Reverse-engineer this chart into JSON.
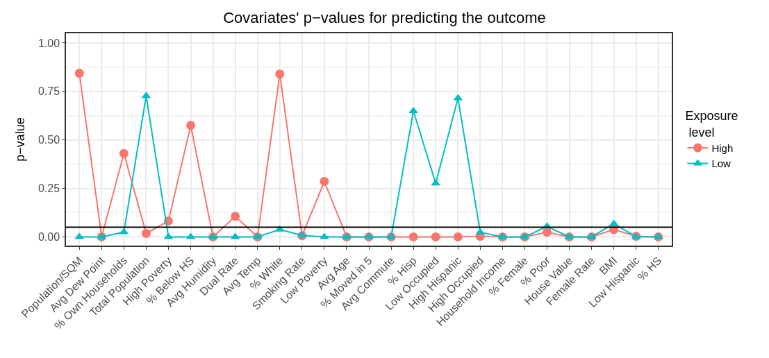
{
  "chart_data": {
    "type": "line",
    "title": "Covariates' p−values for predicting the outcome",
    "ylabel": "p−value",
    "legend_title": "Exposure\n level",
    "categories": [
      "Population/SQM",
      "Avg Dew Point",
      "% Own Households",
      "Total Population",
      "High Poverty",
      "% Below HS",
      "Avg Humidity",
      "Dual Rate",
      "Avg Temp",
      "% White",
      "Smoking Rate",
      "Low Poverty",
      "Avg Age",
      "% Moved in 5",
      "Avg Commute",
      "% Hisp",
      "Low Occupied",
      "High Hispanic",
      "High Occupied",
      "Household Income",
      "% Female",
      "% Poor",
      "House Value",
      "Female Rate",
      "BMI",
      "Low Hispanic",
      "% HS"
    ],
    "series": [
      {
        "name": "High",
        "color": "#f8766d",
        "marker": "circle",
        "values": [
          0.844,
          0,
          0.43,
          0.018,
          0.082,
          0.575,
          0,
          0.106,
          0,
          0.84,
          0.006,
          0.286,
          0,
          0,
          0,
          0,
          0,
          0,
          0.003,
          0,
          0,
          0.024,
          0,
          0,
          0.038,
          0.003,
          0
        ]
      },
      {
        "name": "Low",
        "color": "#00bfc4",
        "marker": "triangle",
        "values": [
          0,
          0,
          0.025,
          0.727,
          0,
          0,
          0,
          0,
          0,
          0.038,
          0.008,
          0,
          0,
          0,
          0,
          0.649,
          0.276,
          0.715,
          0.024,
          0,
          0,
          0.054,
          0,
          0,
          0.068,
          0,
          0
        ]
      }
    ],
    "ylim": [
      -0.045,
      1.05
    ],
    "yticks": [
      {
        "value": 0,
        "label": "0.00"
      },
      {
        "value": 0.25,
        "label": "0.25"
      },
      {
        "value": 0.5,
        "label": "0.50"
      },
      {
        "value": 0.75,
        "label": "0.75"
      },
      {
        "value": 1,
        "label": "1.00"
      }
    ],
    "ref_lines": [
      {
        "axis": "y",
        "value": 0.05,
        "label": null,
        "color": "#000000"
      }
    ],
    "grid": true,
    "legend": "right",
    "line_style": "solid"
  }
}
